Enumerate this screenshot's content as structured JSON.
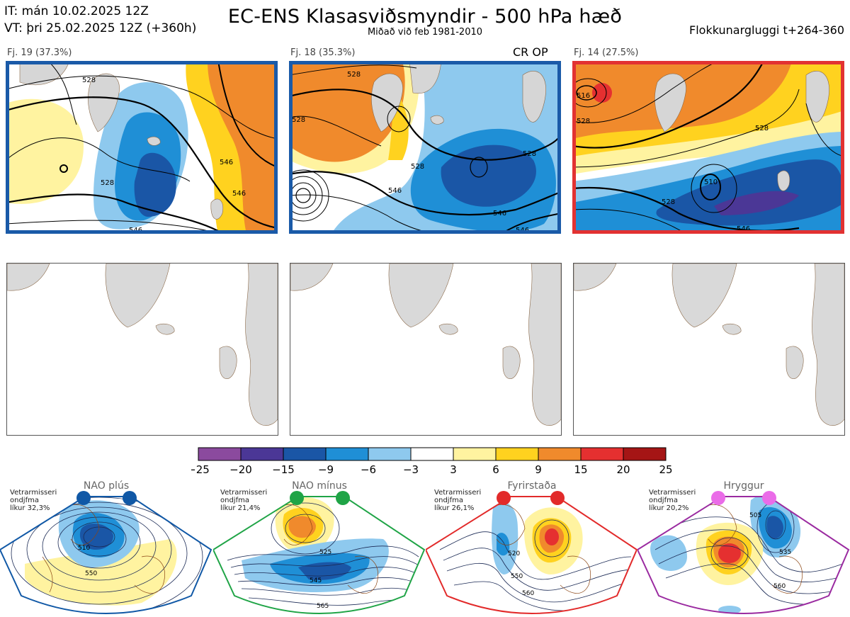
{
  "header": {
    "it_line": "IT: mán 10.02.2025 12Z",
    "vt_line": "VT: þri 25.02.2025 12Z  (+360h)",
    "title": "EC-ENS Klasasviðsmyndir - 500 hPa hæð",
    "subtitle": "Miðað við feb 1981-2010",
    "window": "Flokkunargluggi t+264-360"
  },
  "panels": [
    {
      "label": "Fj. 19 (37.3%)",
      "frame_color": "#1a5aa8",
      "badge": "",
      "contours": [
        "528",
        "546",
        "546",
        "528",
        "546"
      ]
    },
    {
      "label": "Fj. 18 (35.3%)",
      "frame_color": "#1a5aa8",
      "badge": "CR OP",
      "contours": [
        "528",
        "528",
        "528",
        "546",
        "546",
        "528",
        "546"
      ]
    },
    {
      "label": "Fj. 14 (27.5%)",
      "frame_color": "#e23232",
      "badge": "",
      "contours": [
        "516",
        "528",
        "510",
        "528",
        "546",
        "528"
      ]
    }
  ],
  "colorbar": {
    "ticks": [
      "−25",
      "−20",
      "−15",
      "−9",
      "−6",
      "−3",
      "3",
      "6",
      "9",
      "15",
      "20",
      "25"
    ],
    "colors": [
      "#8b4a9e",
      "#4b3796",
      "#1a56a6",
      "#1f8fd6",
      "#8ec9ee",
      "#ffffff",
      "#fff3a0",
      "#ffd21f",
      "#f08a2c",
      "#e53030",
      "#a51515"
    ]
  },
  "regimes": [
    {
      "name": "NAO plús",
      "note_lines": [
        "Vetrarmisseri",
        "ondjfma",
        "líkur 32,3%"
      ],
      "color": "#1058a6",
      "contours": [
        "510",
        "550"
      ]
    },
    {
      "name": "NAO mínus",
      "note_lines": [
        "Vetrarmisseri",
        "ondjfma",
        "líkur 21,4%"
      ],
      "color": "#1fa446",
      "contours": [
        "525",
        "545",
        "565"
      ]
    },
    {
      "name": "Fyrirstaða",
      "note_lines": [
        "Vetrarmisseri",
        "ondjfma",
        "líkur 26,1%"
      ],
      "color": "#e22a2a",
      "contours": [
        "520",
        "550",
        "560"
      ]
    },
    {
      "name": "Hryggur",
      "note_lines": [
        "Vetrarmisseri",
        "ondjfma",
        "líkur 20,2%"
      ],
      "color": "#9a2aa0",
      "contours": [
        "505",
        "535",
        "560"
      ]
    }
  ]
}
